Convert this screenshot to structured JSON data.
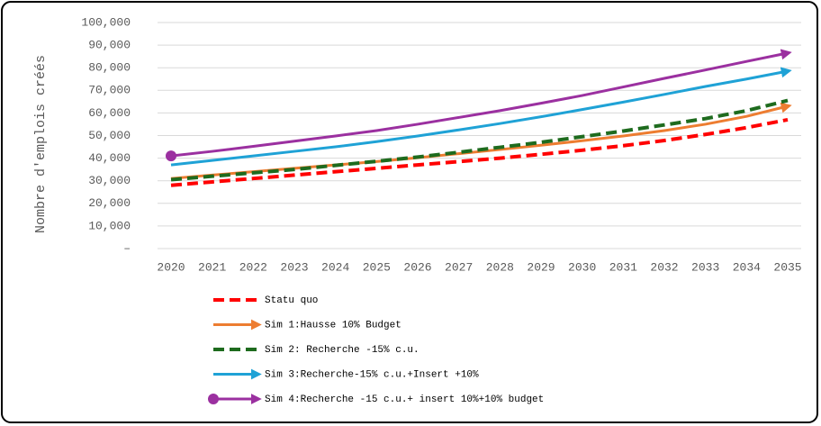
{
  "chart_data": {
    "type": "line",
    "y_label": "Nombre d'emplois créés",
    "categories": [
      "2020",
      "2021",
      "2022",
      "2023",
      "2024",
      "2025",
      "2026",
      "2027",
      "2028",
      "2029",
      "2030",
      "2031",
      "2032",
      "2033",
      "2034",
      "2035"
    ],
    "ylim": [
      0,
      100000
    ],
    "yticks": [
      {
        "value": 0,
        "label": "–"
      },
      {
        "value": 10000,
        "label": "10,000"
      },
      {
        "value": 20000,
        "label": "20,000"
      },
      {
        "value": 30000,
        "label": "30,000"
      },
      {
        "value": 40000,
        "label": "40,000"
      },
      {
        "value": 50000,
        "label": "50,000"
      },
      {
        "value": 60000,
        "label": "60,000"
      },
      {
        "value": 70000,
        "label": "70,000"
      },
      {
        "value": 80000,
        "label": "80,000"
      },
      {
        "value": 90000,
        "label": "90,000"
      },
      {
        "value": 100000,
        "label": "100,000"
      }
    ],
    "grid": true,
    "legend": "bottom",
    "series": [
      {
        "name": "Statu quo",
        "color": "#ff0000",
        "dashed": true,
        "values": [
          28000,
          29500,
          31000,
          32500,
          34000,
          35500,
          37000,
          38500,
          40000,
          41700,
          43500,
          45500,
          47800,
          50500,
          53500,
          57000
        ]
      },
      {
        "name": "Sim 1:Hausse 10% Budget",
        "color": "#ed7d31",
        "arrow": true,
        "values": [
          31000,
          32500,
          34000,
          35500,
          37000,
          38500,
          40200,
          42000,
          43800,
          45700,
          47700,
          49800,
          52200,
          55000,
          58500,
          63000
        ]
      },
      {
        "name": "Sim 2: Recherche -15% c.u.",
        "color": "#1e6b1e",
        "dashed": true,
        "values": [
          30500,
          32000,
          33500,
          35000,
          36800,
          38600,
          40500,
          42600,
          44800,
          47000,
          49500,
          52000,
          54700,
          57500,
          61000,
          65500
        ]
      },
      {
        "name": "Sim 3:Recherche-15% c.u.+Insert +10%",
        "color": "#1fa2d6",
        "arrow": true,
        "values": [
          37000,
          39000,
          41000,
          43000,
          45000,
          47300,
          49800,
          52500,
          55300,
          58300,
          61500,
          64800,
          68200,
          71700,
          75000,
          78500
        ]
      },
      {
        "name": "Sim 4:Recherche -15 c.u.+ insert 10%+10% budget",
        "color": "#9b30a0",
        "arrow": true,
        "start_circle": true,
        "values": [
          41000,
          43000,
          45200,
          47500,
          49800,
          52200,
          55000,
          58000,
          61000,
          64300,
          67700,
          71500,
          75300,
          79000,
          82800,
          86500
        ]
      }
    ]
  }
}
